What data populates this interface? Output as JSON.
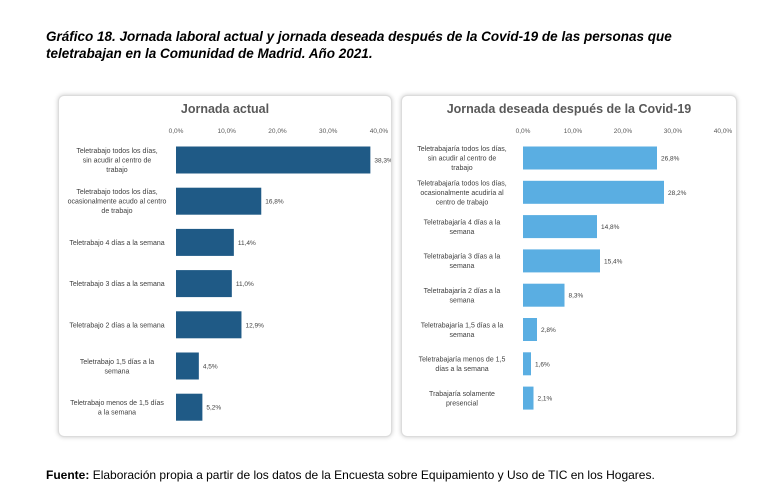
{
  "title": "Gráfico 18. Jornada laboral actual y jornada deseada después de la Covid-19 de las personas que teletrabajan en la Comunidad de Madrid. Año 2021.",
  "source": {
    "label": "Fuente:",
    "text": "Elaboración propia a partir de los datos de la Encuesta sobre Equipamiento y Uso de TIC en los Hogares."
  },
  "colors": {
    "actual": "#1f5a86",
    "deseada": "#5aaee2"
  },
  "chart_data": [
    {
      "type": "bar",
      "orientation": "horizontal",
      "title": "Jornada actual",
      "xlim": [
        0,
        40
      ],
      "ticks": [
        "0,0%",
        "10,0%",
        "20,0%",
        "30,0%",
        "40,0%"
      ],
      "categories": [
        "Teletrabajo todos los días, sin acudir al centro de trabajo",
        "Teletrabajo todos los días, ocasionalmente acudo al centro de trabajo",
        "Teletrabajo 4 días a la semana",
        "Teletrabajo 3 días a la semana",
        "Teletrabajo 2 días a la semana",
        "Teletrabajo 1,5 días a la semana",
        "Teletrabajo menos de 1,5 días a la semana"
      ],
      "values": [
        38.3,
        16.8,
        11.4,
        11.0,
        12.9,
        4.5,
        5.2
      ],
      "labels": [
        "38,3%",
        "16,8%",
        "11,4%",
        "11,0%",
        "12,9%",
        "4,5%",
        "5,2%"
      ]
    },
    {
      "type": "bar",
      "orientation": "horizontal",
      "title": "Jornada deseada después de la Covid-19",
      "xlim": [
        0,
        40
      ],
      "ticks": [
        "0,0%",
        "10,0%",
        "20,0%",
        "30,0%",
        "40,0%"
      ],
      "categories": [
        "Teletrabajaría todos los días, sin acudir al centro de trabajo",
        "Teletrabajaría todos los días, ocasionalmente acudiría al centro de trabajo",
        "Teletrabajaría 4 días a la semana",
        "Teletrabajaría 3 días a la semana",
        "Teletrabajaría 2 días a la semana",
        "Teletrabajaría 1,5 días a la semana",
        "Teletrabajaría menos de 1,5 días a la semana",
        "Trabajaría solamente presencial"
      ],
      "values": [
        26.8,
        28.2,
        14.8,
        15.4,
        8.3,
        2.8,
        1.6,
        2.1
      ],
      "labels": [
        "26,8%",
        "28,2%",
        "14,8%",
        "15,4%",
        "8,3%",
        "2,8%",
        "1,6%",
        "2,1%"
      ]
    }
  ]
}
